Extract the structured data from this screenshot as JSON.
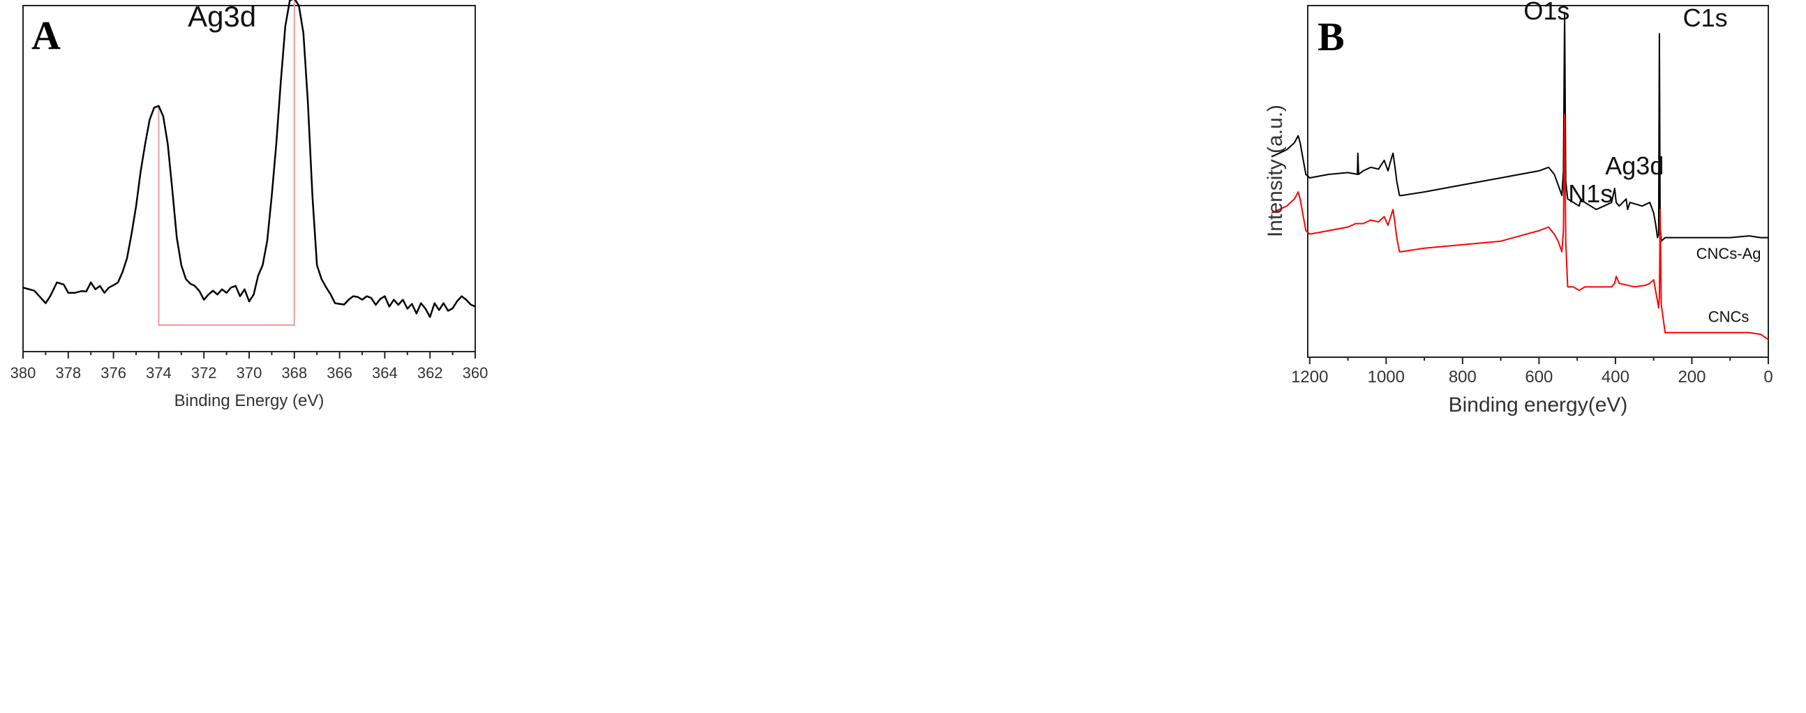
{
  "chart_data": [
    {
      "panel": "A",
      "type": "line",
      "xlabel": "Binding Energy (eV)",
      "ylabel": "",
      "xlim": [
        380,
        360
      ],
      "x_reversed": true,
      "xticks": [
        380,
        378,
        376,
        374,
        372,
        370,
        368,
        366,
        364,
        362,
        360
      ],
      "ylim": [
        0,
        100
      ],
      "grid": false,
      "annotations": [
        {
          "text": "Ag3d",
          "x": 371.2,
          "y": 94
        }
      ],
      "series": [
        {
          "color": "#000000",
          "x": [
            380,
            379.5,
            379,
            378.8,
            378.5,
            378.2,
            378,
            377.7,
            377.4,
            377.2,
            377,
            376.8,
            376.6,
            376.4,
            376.2,
            376,
            375.8,
            375.6,
            375.4,
            375.2,
            375,
            374.8,
            374.6,
            374.4,
            374.2,
            374,
            373.8,
            373.6,
            373.4,
            373.2,
            373,
            372.8,
            372.6,
            372.4,
            372.2,
            372,
            371.8,
            371.6,
            371.4,
            371.2,
            371,
            370.8,
            370.6,
            370.4,
            370.2,
            370,
            369.8,
            369.6,
            369.4,
            369.2,
            369,
            368.8,
            368.6,
            368.4,
            368.2,
            368,
            367.8,
            367.6,
            367.4,
            367.2,
            367,
            366.8,
            366.6,
            366.4,
            366.2,
            366,
            365.8,
            365.6,
            365.4,
            365.2,
            365,
            364.8,
            364.6,
            364.4,
            364.2,
            364,
            363.8,
            363.6,
            363.4,
            363.2,
            363,
            362.8,
            362.6,
            362.4,
            362.2,
            362,
            361.8,
            361.6,
            361.4,
            361.2,
            361,
            360.8,
            360.6,
            360.4,
            360.2,
            360
          ],
          "y": [
            18.5,
            17.6,
            14,
            16,
            20,
            19.4,
            17,
            17,
            17.5,
            17.4,
            20,
            18,
            19,
            17,
            18.5,
            19.2,
            20,
            23,
            27,
            34,
            42,
            52,
            60,
            67,
            70.5,
            71,
            68,
            60,
            47,
            33,
            25,
            21,
            19.6,
            19,
            17.5,
            15,
            16.5,
            17.6,
            16.5,
            18,
            17,
            18.5,
            19,
            16,
            18,
            14.5,
            16.5,
            22,
            25,
            32,
            45,
            60,
            78,
            94,
            101.5,
            102,
            100,
            92,
            72,
            45,
            25,
            21,
            18.6,
            16.6,
            14,
            13.8,
            13.6,
            15,
            16,
            15.8,
            15,
            16,
            15.5,
            13.5,
            15.2,
            16,
            13,
            15,
            13.5,
            15,
            12.4,
            13.8,
            11,
            14,
            12.4,
            10,
            14,
            12,
            14,
            11.8,
            12.5,
            14.6,
            16,
            15,
            13.6,
            13
          ]
        }
      ],
      "markers": [
        {
          "type": "bracket",
          "x1": 374,
          "x2": 368,
          "color": "#f29a9a"
        }
      ]
    },
    {
      "panel": "B",
      "type": "line",
      "xlabel": "Binding energy(eV)",
      "ylabel": "Intensity (a.u.)",
      "xlim": [
        1300,
        0
      ],
      "x_reversed": true,
      "xticks": [
        1200,
        1000,
        800,
        600,
        400,
        200,
        0
      ],
      "ylim": [
        0,
        100
      ],
      "grid": false,
      "annotations": [
        {
          "text": "O1s",
          "x": 580,
          "y": 96
        },
        {
          "text": "C1s",
          "x": 165,
          "y": 94
        },
        {
          "text": "N1s",
          "x": 465,
          "y": 44
        },
        {
          "text": "Ag3d",
          "x": 350,
          "y": 52
        },
        {
          "text": "CNCs-Ag",
          "x": 104,
          "y": 28
        },
        {
          "text": "CNCs",
          "x": 104,
          "y": 10
        }
      ],
      "series": [
        {
          "name": "CNCs-Ag",
          "color": "#000000",
          "x": [
            1300,
            1280,
            1260,
            1240,
            1230,
            1225,
            1220,
            1210,
            1200,
            1150,
            1100,
            1075,
            1074,
            1072,
            1060,
            1040,
            1020,
            1005,
            995,
            985,
            982,
            978,
            972,
            965,
            960,
            900,
            800,
            700,
            600,
            575,
            560,
            550,
            540,
            536,
            533,
            530,
            525,
            510,
            495,
            490,
            480,
            450,
            410,
            402,
            398,
            390,
            372,
            368,
            362,
            330,
            310,
            300,
            295,
            290,
            287,
            285,
            283,
            280,
            270,
            200,
            150,
            100,
            50,
            20,
            0
          ],
          "y": [
            57,
            58,
            59,
            61,
            63,
            61,
            58,
            52,
            51,
            52,
            52.5,
            52,
            58,
            52,
            53,
            54,
            53.5,
            56,
            53,
            57,
            58,
            55,
            50,
            46,
            46,
            47,
            49,
            51,
            53,
            54,
            52,
            49,
            46,
            53,
            98,
            50,
            45,
            44,
            43,
            45,
            44,
            42,
            44,
            48,
            44,
            43,
            45,
            42,
            44,
            43,
            44,
            41,
            38,
            34,
            35,
            92,
            37,
            33,
            34,
            34,
            34,
            34,
            34.5,
            34,
            34
          ]
        },
        {
          "name": "CNCs",
          "color": "#ff0000",
          "x": [
            1300,
            1280,
            1260,
            1240,
            1230,
            1225,
            1220,
            1210,
            1200,
            1150,
            1100,
            1080,
            1060,
            1040,
            1020,
            1005,
            995,
            985,
            982,
            978,
            972,
            965,
            960,
            900,
            800,
            700,
            600,
            575,
            560,
            550,
            540,
            536,
            533,
            530,
            525,
            510,
            495,
            480,
            450,
            410,
            402,
            398,
            390,
            350,
            320,
            310,
            300,
            295,
            290,
            287,
            285,
            283,
            280,
            270,
            200,
            150,
            100,
            50,
            20,
            0
          ],
          "y": [
            41,
            42,
            43,
            45,
            47,
            45,
            42,
            36,
            35,
            36,
            37,
            38,
            38,
            39,
            38.5,
            40,
            37.5,
            41,
            42,
            39,
            34,
            30,
            30,
            31,
            32,
            33,
            36,
            37,
            35,
            33,
            30,
            36,
            69,
            33,
            20,
            20,
            19,
            20,
            20,
            20,
            21,
            23,
            21,
            20,
            20.5,
            21,
            22,
            19,
            16,
            14,
            17,
            42,
            15,
            7,
            7,
            7,
            7,
            7,
            6.5,
            5
          ]
        }
      ]
    }
  ],
  "panels": {
    "a_letter": "A",
    "b_letter": "B"
  }
}
